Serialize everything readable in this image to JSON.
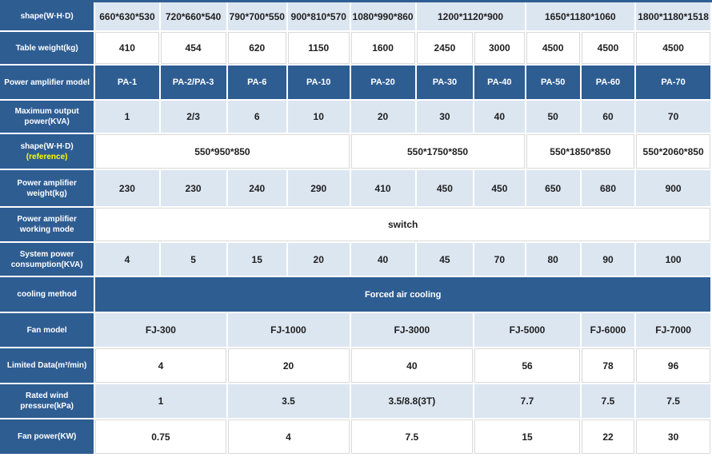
{
  "table": {
    "colors": {
      "dark_blue": "#2e5d92",
      "light_blue": "#dce6f1",
      "white": "#ffffff",
      "header_text": "#ffffff",
      "cell_text": "#1f1f1f",
      "accent_yellow": "#ffff00",
      "grid_gray": "#d9d9d9"
    },
    "rows": [
      {
        "header": "shape(W·H·D)",
        "style": "light",
        "cells": [
          {
            "text": "660*630*530"
          },
          {
            "text": "720*660*540"
          },
          {
            "text": "790*700*550"
          },
          {
            "text": "900*810*570"
          },
          {
            "text": "1080*990*860"
          },
          {
            "text": "1200*1120*900",
            "span": 2
          },
          {
            "text": "1650*1180*1060",
            "span": 2
          },
          {
            "text": "1800*1180*1518"
          }
        ]
      },
      {
        "header": "Table weight(kg)",
        "style": "white",
        "cells": [
          {
            "text": "410"
          },
          {
            "text": "454"
          },
          {
            "text": "620"
          },
          {
            "text": "1150"
          },
          {
            "text": "1600"
          },
          {
            "text": "2450"
          },
          {
            "text": "3000"
          },
          {
            "text": "4500"
          },
          {
            "text": "4500"
          },
          {
            "text": "4500"
          }
        ]
      },
      {
        "header": "Power amplifier model",
        "style": "dark",
        "cells": [
          {
            "text": "PA-1"
          },
          {
            "text": "PA-2/PA-3"
          },
          {
            "text": "PA-6"
          },
          {
            "text": "PA-10"
          },
          {
            "text": "PA-20"
          },
          {
            "text": "PA-30"
          },
          {
            "text": "PA-40"
          },
          {
            "text": "PA-50"
          },
          {
            "text": "PA-60"
          },
          {
            "text": "PA-70"
          }
        ]
      },
      {
        "header": "Maximum output power(KVA)",
        "style": "light",
        "cells": [
          {
            "text": "1"
          },
          {
            "text": "2/3"
          },
          {
            "text": "6"
          },
          {
            "text": "10"
          },
          {
            "text": "20"
          },
          {
            "text": "30"
          },
          {
            "text": "40"
          },
          {
            "text": "50"
          },
          {
            "text": "60"
          },
          {
            "text": "70"
          }
        ]
      },
      {
        "header": "shape(W·H·D)",
        "header_accent": "(reference)",
        "style": "white",
        "cells": [
          {
            "text": "550*950*850",
            "span": 4
          },
          {
            "text": "550*1750*850",
            "span": 3
          },
          {
            "text": "550*1850*850",
            "span": 2
          },
          {
            "text": "550*2060*850"
          }
        ]
      },
      {
        "header": "Power amplifier weight(kg)",
        "style": "light",
        "cells": [
          {
            "text": "230"
          },
          {
            "text": "230"
          },
          {
            "text": "240"
          },
          {
            "text": "290"
          },
          {
            "text": "410"
          },
          {
            "text": "450"
          },
          {
            "text": "450"
          },
          {
            "text": "650"
          },
          {
            "text": "680"
          },
          {
            "text": "900"
          }
        ]
      },
      {
        "header": "Power amplifier working mode",
        "style": "white",
        "cells": [
          {
            "text": "switch",
            "span": 10
          }
        ]
      },
      {
        "header": "System power consumption(KVA)",
        "style": "light",
        "cells": [
          {
            "text": "4"
          },
          {
            "text": "5"
          },
          {
            "text": "15"
          },
          {
            "text": "20"
          },
          {
            "text": "40"
          },
          {
            "text": "45"
          },
          {
            "text": "70"
          },
          {
            "text": "80"
          },
          {
            "text": "90"
          },
          {
            "text": "100"
          }
        ]
      },
      {
        "header": "cooling method",
        "style": "dark",
        "cells": [
          {
            "text": "Forced air cooling",
            "span": 10
          }
        ]
      },
      {
        "header": "Fan model",
        "style": "light",
        "cells": [
          {
            "text": "FJ-300",
            "span": 2
          },
          {
            "text": "FJ-1000",
            "span": 2
          },
          {
            "text": "FJ-3000",
            "span": 2
          },
          {
            "text": "FJ-5000",
            "span": 2
          },
          {
            "text": "FJ-6000"
          },
          {
            "text": "FJ-7000"
          }
        ]
      },
      {
        "header": "Limited Data(m³/min)",
        "style": "white",
        "cells": [
          {
            "text": "4",
            "span": 2
          },
          {
            "text": "20",
            "span": 2
          },
          {
            "text": "40",
            "span": 2
          },
          {
            "text": "56",
            "span": 2
          },
          {
            "text": "78"
          },
          {
            "text": "96"
          }
        ]
      },
      {
        "header": "Rated wind pressure(kPa)",
        "style": "light",
        "cells": [
          {
            "text": "1",
            "span": 2
          },
          {
            "text": "3.5",
            "span": 2
          },
          {
            "text": "3.5/8.8(3T)",
            "span": 2
          },
          {
            "text": "7.7",
            "span": 2
          },
          {
            "text": "7.5"
          },
          {
            "text": "7.5"
          }
        ]
      },
      {
        "header": "Fan power(KW)",
        "style": "white",
        "cells": [
          {
            "text": "0.75",
            "span": 2
          },
          {
            "text": "4",
            "span": 2
          },
          {
            "text": "7.5",
            "span": 2
          },
          {
            "text": "15",
            "span": 2
          },
          {
            "text": "22"
          },
          {
            "text": "30"
          }
        ]
      }
    ]
  }
}
